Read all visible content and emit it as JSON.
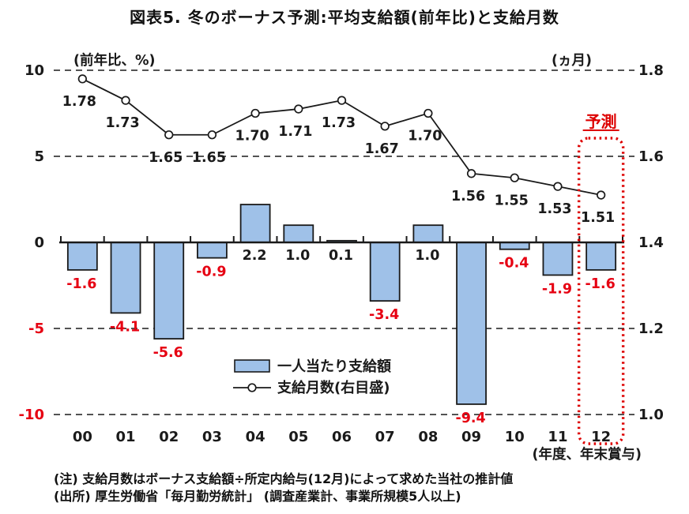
{
  "title": "図表5. 冬のボーナス予測:平均支給額(前年比)と支給月数",
  "chart_data": {
    "type": "combo_bar_line",
    "categories": [
      "00",
      "01",
      "02",
      "03",
      "04",
      "05",
      "06",
      "07",
      "08",
      "09",
      "10",
      "11",
      "12"
    ],
    "series": [
      {
        "name": "一人当たり支給額",
        "type": "bar",
        "axis": "left",
        "values": [
          -1.6,
          -4.1,
          -5.6,
          -0.9,
          2.2,
          1.0,
          0.1,
          -3.4,
          1.0,
          -9.4,
          -0.4,
          -1.9,
          -1.6
        ]
      },
      {
        "name": "支給月数(右目盛)",
        "type": "line",
        "axis": "right",
        "values": [
          1.78,
          1.73,
          1.65,
          1.65,
          1.7,
          1.71,
          1.73,
          1.67,
          1.7,
          1.56,
          1.55,
          1.53,
          1.51
        ]
      }
    ],
    "left_axis": {
      "caption": "(前年比、%)",
      "ticks": [
        10,
        5,
        0,
        -5,
        -10
      ],
      "range": [
        -10,
        10
      ]
    },
    "right_axis": {
      "caption": "(ヵ月)",
      "ticks": [
        1.8,
        1.6,
        1.4,
        1.2,
        1.0
      ],
      "range": [
        1.0,
        1.8
      ]
    },
    "xlabel": "(年度、年末賞与)",
    "grid": true,
    "legend_position": "inside-bottom-center",
    "forecast": {
      "label": "予測",
      "category": "12",
      "category_index": 12
    }
  },
  "legend": {
    "bar_label": "一人当たり支給額",
    "line_label": "支給月数(右目盛)"
  },
  "colors": {
    "bar_fill": "#9fc1e8",
    "stroke": "#1a1a1a",
    "negative_red": "#e60012",
    "forecast_red": "#dd0000",
    "text": "#1a1a1a"
  },
  "notes": [
    "(注) 支給月数はボーナス支給額÷所定内給与(12月)によって求めた当社の推計値",
    "(出所) 厚生労働省「毎月勤労統計」 (調査産業計、事業所規模5人以上)"
  ]
}
